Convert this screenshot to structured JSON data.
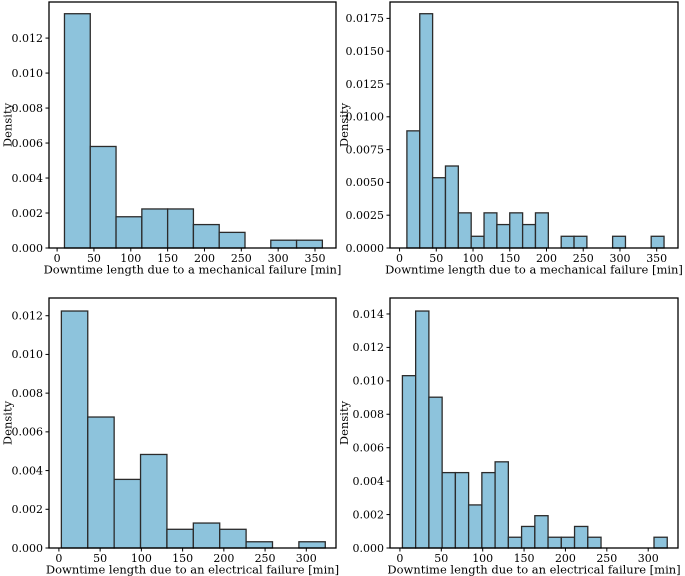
{
  "figure": {
    "background": "#ffffff",
    "bar_fill": "#8dc3dc",
    "bar_edge": "#2b2b2b",
    "axis_color": "#000000",
    "y_axis_label": "Density",
    "x_axis_label_mechanical": "Downtime length due to a mechanical failure [min]",
    "x_axis_label_electrical": "Downtime length due to an electrical failure [min]"
  },
  "chart_data": [
    {
      "id": "mechanical-coarse",
      "type": "bar",
      "subtype": "histogram",
      "title": "",
      "xlabel": "Downtime length due to a mechanical failure [min]",
      "ylabel": "Density",
      "bin_edges": [
        10,
        45,
        80,
        115,
        150,
        185,
        220,
        255,
        290,
        325,
        360
      ],
      "densities": [
        0.013393,
        0.005804,
        0.001786,
        0.002232,
        0.002232,
        0.001339,
        0.000893,
        0,
        0.000446,
        0.000446
      ],
      "xticks": [
        0,
        50,
        100,
        150,
        200,
        250,
        300,
        350
      ],
      "ytick_labels": [
        "0.000",
        "0.002",
        "0.004",
        "0.006",
        "0.008",
        "0.010",
        "0.012"
      ],
      "xlim": [
        -11,
        378.5
      ],
      "ylim": [
        0,
        0.014063
      ],
      "grid": false,
      "legend": "none"
    },
    {
      "id": "mechanical-fine",
      "type": "bar",
      "subtype": "histogram",
      "title": "",
      "xlabel": "Downtime length due to a mechanical failure [min]",
      "ylabel": "Density",
      "bin_edges": [
        10,
        27.5,
        45,
        62.5,
        80,
        97.5,
        115,
        132.5,
        150,
        167.5,
        185,
        202.5,
        220,
        237.5,
        255,
        272.5,
        290,
        307.5,
        325,
        342.5,
        360
      ],
      "densities": [
        0.008929,
        0.017857,
        0.005357,
        0.00625,
        0.002679,
        0.000893,
        0.002679,
        0.001786,
        0.002679,
        0.001786,
        0.002679,
        0,
        0.000893,
        0.000893,
        0,
        0,
        0.000893,
        0,
        0,
        0.000893
      ],
      "xticks": [
        0,
        50,
        100,
        150,
        200,
        250,
        300,
        350
      ],
      "ytick_labels": [
        "0.0000",
        "0.0025",
        "0.0050",
        "0.0075",
        "0.0100",
        "0.0125",
        "0.0150",
        "0.0175"
      ],
      "xlim": [
        -13,
        379
      ],
      "ylim": [
        0,
        0.01875
      ],
      "grid": false,
      "legend": "none"
    },
    {
      "id": "electrical-coarse",
      "type": "bar",
      "subtype": "histogram",
      "title": "",
      "xlabel": "Downtime length due to an electrical failure [min]",
      "ylabel": "Density",
      "bin_edges": [
        3,
        35,
        67,
        99,
        131,
        163,
        195,
        227,
        259,
        291,
        323
      ],
      "densities": [
        0.012242,
        0.006766,
        0.003544,
        0.004832,
        0.000966,
        0.001289,
        0.000966,
        0.000322,
        0,
        0.000322
      ],
      "xticks": [
        0,
        50,
        100,
        150,
        200,
        250,
        300
      ],
      "ytick_labels": [
        "0.000",
        "0.002",
        "0.004",
        "0.006",
        "0.008",
        "0.010",
        "0.012"
      ],
      "xlim": [
        -12,
        336
      ],
      "ylim": [
        0,
        0.012915
      ],
      "grid": false,
      "legend": "none"
    },
    {
      "id": "electrical-fine",
      "type": "bar",
      "subtype": "histogram",
      "title": "",
      "xlabel": "Downtime length due to an electrical failure [min]",
      "ylabel": "Density",
      "bin_edges": [
        3,
        19,
        35,
        51,
        67,
        83,
        99,
        115,
        131,
        147,
        163,
        179,
        195,
        211,
        227,
        243,
        259,
        275,
        291,
        307,
        323
      ],
      "densities": [
        0.010309,
        0.014175,
        0.009021,
        0.00451,
        0.00451,
        0.002577,
        0.00451,
        0.005155,
        0.000644,
        0.001289,
        0.001933,
        0.000644,
        0.000644,
        0.001289,
        0.000644,
        0,
        0,
        0,
        0,
        0.000644
      ],
      "xticks": [
        0,
        50,
        100,
        150,
        200,
        250,
        300
      ],
      "ytick_labels": [
        "0.000",
        "0.002",
        "0.004",
        "0.006",
        "0.008",
        "0.010",
        "0.012",
        "0.014"
      ],
      "xlim": [
        -12,
        336
      ],
      "ylim": [
        0,
        0.014955
      ],
      "grid": false,
      "legend": "none"
    }
  ]
}
